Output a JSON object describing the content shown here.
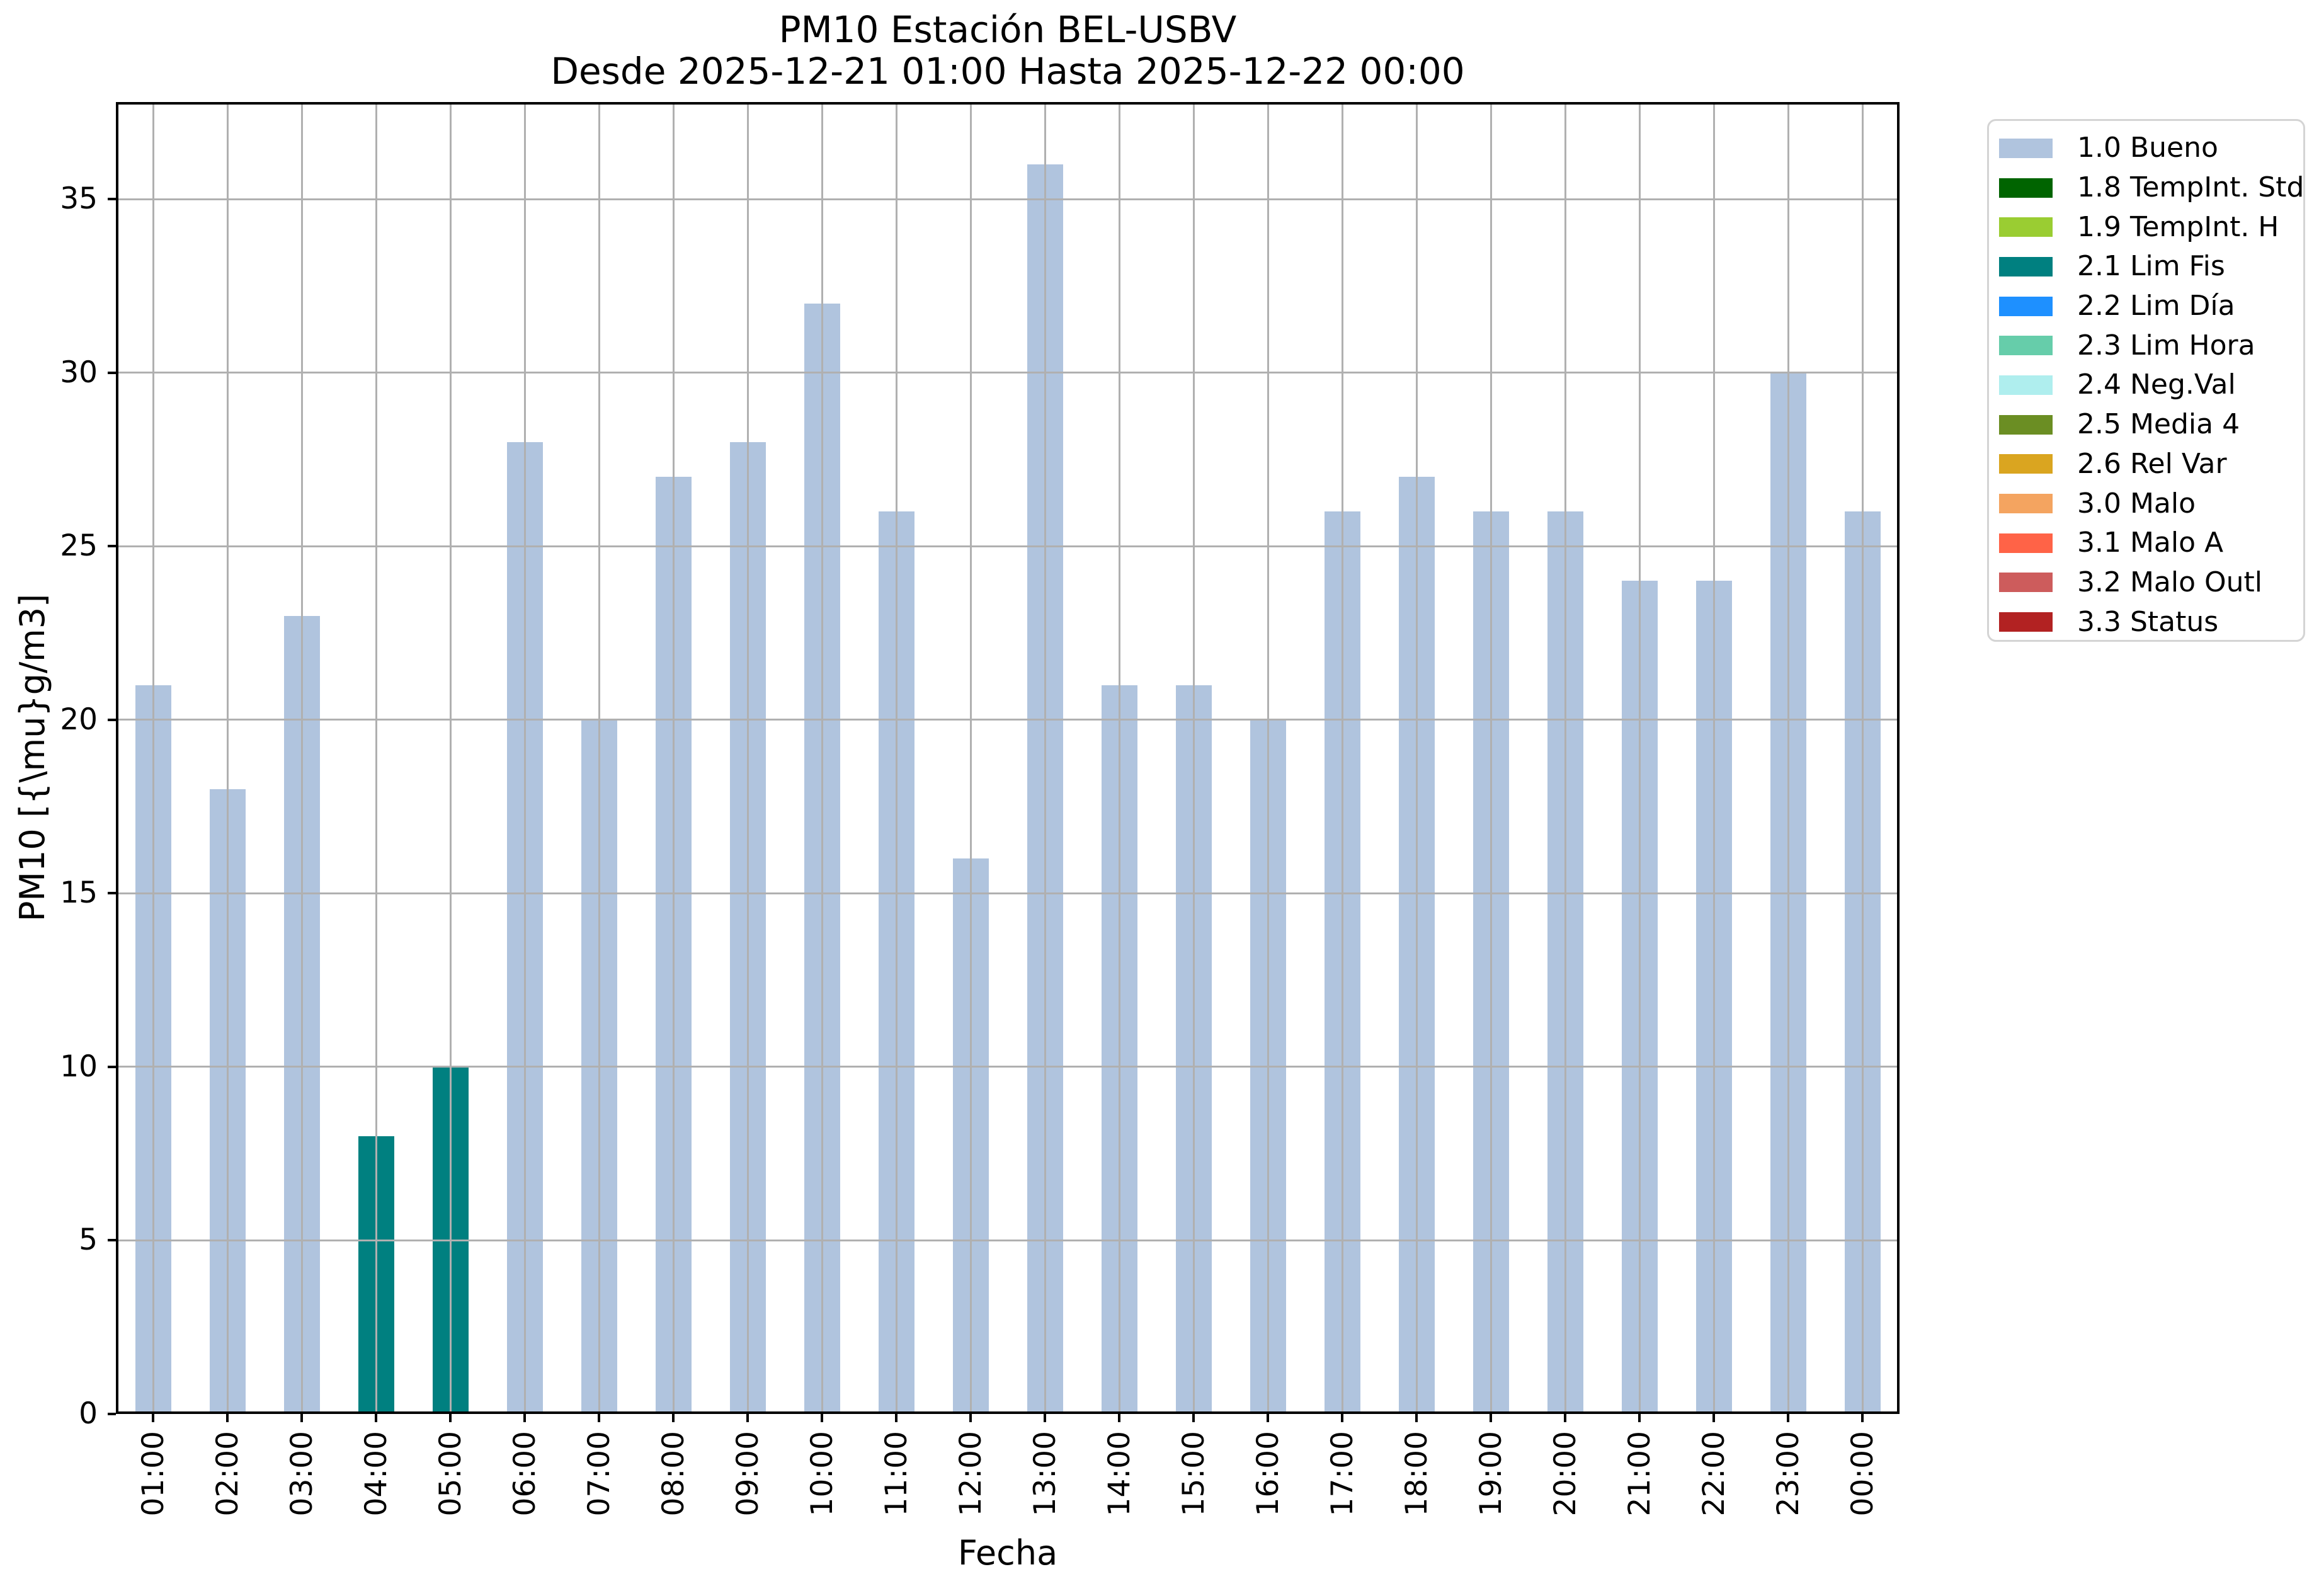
{
  "figure": {
    "title_line1": "PM10 Estación BEL-USBV",
    "title_line2": "Desde 2025-12-21 01:00 Hasta 2025-12-22 00:00",
    "xlabel": "Fecha",
    "ylabel": "PM10 [{\\mu}g/m3]"
  },
  "chart_data": {
    "type": "bar",
    "title": "PM10 Estación BEL-USBV",
    "subtitle": "Desde 2025-12-21 01:00 Hasta 2025-12-22 00:00",
    "xlabel": "Fecha",
    "ylabel": "PM10 [{\\mu}g/m3]",
    "categories": [
      "01:00",
      "02:00",
      "03:00",
      "04:00",
      "05:00",
      "06:00",
      "07:00",
      "08:00",
      "09:00",
      "10:00",
      "11:00",
      "12:00",
      "13:00",
      "14:00",
      "15:00",
      "16:00",
      "17:00",
      "18:00",
      "19:00",
      "20:00",
      "21:00",
      "22:00",
      "23:00",
      "00:00"
    ],
    "values": [
      21,
      18,
      23,
      8,
      10,
      28,
      20,
      27,
      28,
      32,
      26,
      16,
      36,
      21,
      21,
      20,
      26,
      27,
      26,
      26,
      24,
      24,
      30,
      26
    ],
    "bar_flags": [
      "1.0 Bueno",
      "1.0 Bueno",
      "1.0 Bueno",
      "2.1 Lim Fis",
      "2.1 Lim Fis",
      "1.0 Bueno",
      "1.0 Bueno",
      "1.0 Bueno",
      "1.0 Bueno",
      "1.0 Bueno",
      "1.0 Bueno",
      "1.0 Bueno",
      "1.0 Bueno",
      "1.0 Bueno",
      "1.0 Bueno",
      "1.0 Bueno",
      "1.0 Bueno",
      "1.0 Bueno",
      "1.0 Bueno",
      "1.0 Bueno",
      "1.0 Bueno",
      "1.0 Bueno",
      "1.0 Bueno",
      "1.0 Bueno"
    ],
    "ylim": [
      0,
      37.8
    ],
    "yticks": [
      0,
      5,
      10,
      15,
      20,
      25,
      30,
      35
    ],
    "grid": true,
    "grid_above_bars": true,
    "legend_position": "outside upper right"
  },
  "legend": {
    "items": [
      {
        "label": "1.0 Bueno",
        "color": "#b0c4de"
      },
      {
        "label": "1.8 TempInt. Std",
        "color": "#006400"
      },
      {
        "label": "1.9 TempInt. H",
        "color": "#9acd32"
      },
      {
        "label": "2.1 Lim Fis",
        "color": "#008080"
      },
      {
        "label": "2.2 Lim Día",
        "color": "#1e90ff"
      },
      {
        "label": "2.3 Lim Hora",
        "color": "#66cdaa"
      },
      {
        "label": "2.4 Neg.Val",
        "color": "#afeeee"
      },
      {
        "label": "2.5 Media 4",
        "color": "#6b8e23"
      },
      {
        "label": "2.6 Rel Var",
        "color": "#daa520"
      },
      {
        "label": "3.0 Malo",
        "color": "#f4a460"
      },
      {
        "label": "3.1 Malo A",
        "color": "#ff6347"
      },
      {
        "label": "3.2 Malo Outl",
        "color": "#cd5c5c"
      },
      {
        "label": "3.3 Status",
        "color": "#b22222"
      }
    ]
  },
  "style_colors": {
    "background": "#ffffff",
    "grid": "#b0b0b0",
    "spine": "#000000",
    "text": "#000000",
    "bar_default": "#b0c4de",
    "bar_lim_fis": "#008080",
    "legend_border": "#d4d4d4"
  }
}
